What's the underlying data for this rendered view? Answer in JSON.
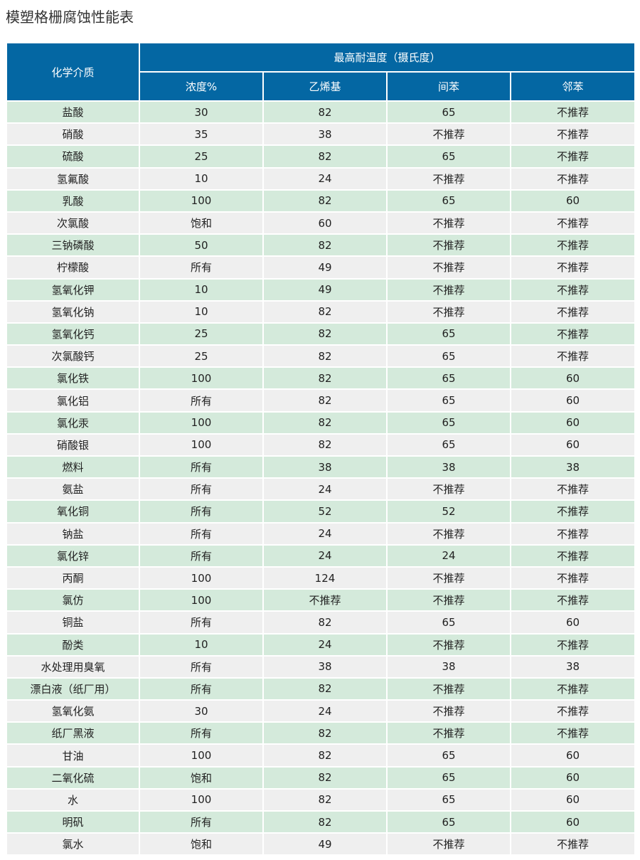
{
  "title": "模塑格栅腐蚀性能表",
  "header": {
    "medium": "化学介质",
    "temp_group": "最高耐温度（摄氏度）",
    "columns": [
      "浓度%",
      "乙烯基",
      "间苯",
      "邻苯"
    ]
  },
  "colors": {
    "header": "#0467a3",
    "row_green": "#d4eadb",
    "row_gray": "#efefef"
  },
  "rows": [
    [
      "盐酸",
      "30",
      "82",
      "65",
      "不推荐"
    ],
    [
      "硝酸",
      "35",
      "38",
      "不推荐",
      "不推荐"
    ],
    [
      "硫酸",
      "25",
      "82",
      "65",
      "不推荐"
    ],
    [
      "氢氟酸",
      "10",
      "24",
      "不推荐",
      "不推荐"
    ],
    [
      "乳酸",
      "100",
      "82",
      "65",
      "60"
    ],
    [
      "次氯酸",
      "饱和",
      "60",
      "不推荐",
      "不推荐"
    ],
    [
      "三钠磷酸",
      "50",
      "82",
      "不推荐",
      "不推荐"
    ],
    [
      "柠檬酸",
      "所有",
      "49",
      "不推荐",
      "不推荐"
    ],
    [
      "氢氧化钾",
      "10",
      "49",
      "不推荐",
      "不推荐"
    ],
    [
      "氢氧化钠",
      "10",
      "82",
      "不推荐",
      "不推荐"
    ],
    [
      "氢氧化钙",
      "25",
      "82",
      "65",
      "不推荐"
    ],
    [
      "次氯酸钙",
      "25",
      "82",
      "65",
      "不推荐"
    ],
    [
      "氯化铁",
      "100",
      "82",
      "65",
      "60"
    ],
    [
      "氯化铝",
      "所有",
      "82",
      "65",
      "60"
    ],
    [
      "氯化汞",
      "100",
      "82",
      "65",
      "60"
    ],
    [
      "硝酸银",
      "100",
      "82",
      "65",
      "60"
    ],
    [
      "燃料",
      "所有",
      "38",
      "38",
      "38"
    ],
    [
      "氨盐",
      "所有",
      "24",
      "不推荐",
      "不推荐"
    ],
    [
      "氧化铜",
      "所有",
      "52",
      "52",
      "不推荐"
    ],
    [
      "钠盐",
      "所有",
      "24",
      "不推荐",
      "不推荐"
    ],
    [
      "氯化锌",
      "所有",
      "24",
      "24",
      "不推荐"
    ],
    [
      "丙酮",
      "100",
      "124",
      "不推荐",
      "不推荐"
    ],
    [
      "氯仿",
      "100",
      "不推荐",
      "不推荐",
      "不推荐"
    ],
    [
      "铜盐",
      "所有",
      "82",
      "65",
      "60"
    ],
    [
      "酚类",
      "10",
      "24",
      "不推荐",
      "不推荐"
    ],
    [
      "水处理用臭氧",
      "所有",
      "38",
      "38",
      "38"
    ],
    [
      "漂白液（纸厂用）",
      "所有",
      "82",
      "不推荐",
      "不推荐"
    ],
    [
      "氢氧化氨",
      "30",
      "24",
      "不推荐",
      "不推荐"
    ],
    [
      "纸厂黑液",
      "所有",
      "82",
      "不推荐",
      "不推荐"
    ],
    [
      "甘油",
      "100",
      "82",
      "65",
      "60"
    ],
    [
      "二氧化硫",
      "饱和",
      "82",
      "65",
      "60"
    ],
    [
      "水",
      "100",
      "82",
      "65",
      "60"
    ],
    [
      "明矾",
      "所有",
      "82",
      "65",
      "60"
    ],
    [
      "氯水",
      "饱和",
      "49",
      "不推荐",
      "不推荐"
    ]
  ]
}
